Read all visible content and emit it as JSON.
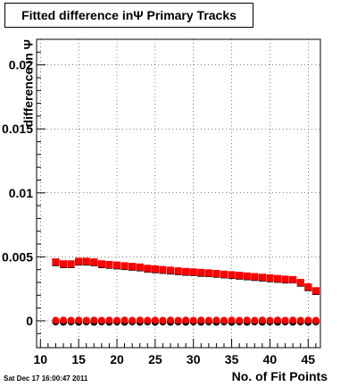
{
  "title": "Fitted difference inΨ  Primary Tracks",
  "footer_timestamp": "Sat Dec 17 16:00:47 2011",
  "chart_data": {
    "type": "scatter",
    "title": "Fitted difference inΨ  Primary Tracks",
    "xlabel": "No. of Fit Points",
    "ylabel": "difference in Ψ",
    "xlim": [
      9.5,
      46.6
    ],
    "ylim": [
      -0.0021,
      0.022
    ],
    "xticks": [
      10,
      15,
      20,
      25,
      30,
      35,
      40,
      45
    ],
    "xtick_labels": [
      "10",
      "15",
      "20",
      "25",
      "30",
      "35",
      "40",
      "45"
    ],
    "yticks": [
      0,
      0.005,
      0.01,
      0.015,
      0.02
    ],
    "ytick_labels": [
      "0",
      "0.005",
      "0.01",
      "0.015",
      "0.02"
    ],
    "grid": true,
    "x": [
      12,
      13,
      14,
      15,
      16,
      17,
      18,
      19,
      20,
      21,
      22,
      23,
      24,
      25,
      26,
      27,
      28,
      29,
      30,
      31,
      32,
      33,
      34,
      35,
      36,
      37,
      38,
      39,
      40,
      41,
      42,
      43,
      44,
      45,
      46
    ],
    "series": [
      {
        "marker": "square",
        "color": "#000000",
        "values": [
          0.00455,
          0.0044,
          0.0044,
          0.0046,
          0.0046,
          0.00455,
          0.0044,
          0.00435,
          0.0043,
          0.00425,
          0.0042,
          0.00415,
          0.00405,
          0.004,
          0.00395,
          0.0039,
          0.00385,
          0.0038,
          0.00378,
          0.00372,
          0.0037,
          0.00365,
          0.0036,
          0.00355,
          0.0035,
          0.00345,
          0.0034,
          0.00335,
          0.0033,
          0.00325,
          0.0032,
          0.0032,
          0.00295,
          0.0026,
          0.0023
        ]
      },
      {
        "marker": "square",
        "color": "#ff0000",
        "values": [
          0.0046,
          0.00445,
          0.00445,
          0.00465,
          0.00465,
          0.0046,
          0.00445,
          0.0044,
          0.00435,
          0.0043,
          0.00425,
          0.0042,
          0.0041,
          0.00405,
          0.004,
          0.00395,
          0.0039,
          0.00385,
          0.00382,
          0.00378,
          0.00374,
          0.0037,
          0.00364,
          0.0036,
          0.00355,
          0.0035,
          0.00345,
          0.0034,
          0.00335,
          0.0033,
          0.00325,
          0.00322,
          0.003,
          0.00265,
          0.00235
        ]
      },
      {
        "marker": "circle",
        "color": "#000000",
        "values": [
          -8e-05,
          -0.0001,
          -8e-05,
          -0.0001,
          -8e-05,
          -0.0001,
          -8e-05,
          -0.0001,
          -8e-05,
          -0.0001,
          -8e-05,
          -0.0001,
          -8e-05,
          -0.0001,
          -8e-05,
          -0.0001,
          -8e-05,
          -0.0001,
          -8e-05,
          -0.0001,
          -8e-05,
          -0.0001,
          -8e-05,
          -0.0001,
          -8e-05,
          -0.0001,
          -8e-05,
          -0.0001,
          -8e-05,
          -0.0001,
          -8e-05,
          -0.0001,
          -8e-05,
          -0.0001,
          -8e-05
        ]
      },
      {
        "marker": "circle",
        "color": "#ff0000",
        "values": [
          3e-05,
          5e-05,
          3e-05,
          5e-05,
          3e-05,
          5e-05,
          3e-05,
          5e-05,
          3e-05,
          5e-05,
          3e-05,
          5e-05,
          3e-05,
          5e-05,
          3e-05,
          5e-05,
          3e-05,
          5e-05,
          3e-05,
          5e-05,
          3e-05,
          5e-05,
          3e-05,
          5e-05,
          3e-05,
          5e-05,
          3e-05,
          5e-05,
          3e-05,
          5e-05,
          3e-05,
          5e-05,
          3e-05,
          5e-05,
          3e-05
        ]
      }
    ]
  }
}
